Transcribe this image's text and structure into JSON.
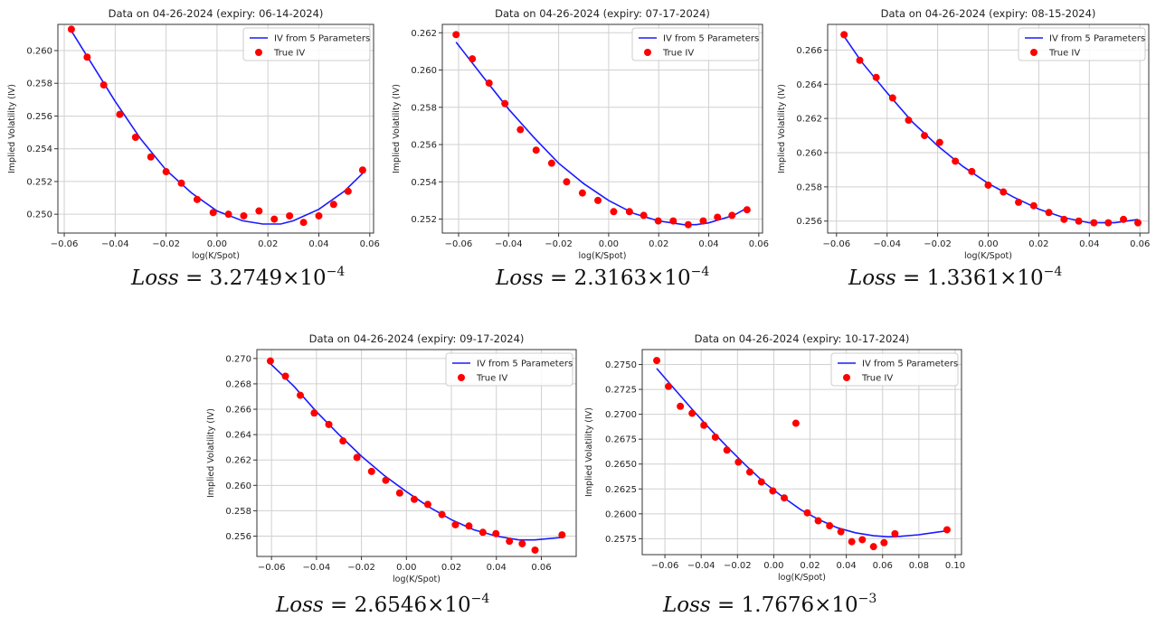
{
  "chart_data": [
    {
      "type": "scatter",
      "title": "Data on 04-26-2024 (expiry: 06-14-2024)",
      "xlabel": "log(K/Spot)",
      "ylabel": "Implied Volatility (IV)",
      "xlim": [
        -0.0625,
        0.0615
      ],
      "ylim": [
        0.24885,
        0.2616
      ],
      "xticks": [
        -0.06,
        -0.04,
        -0.02,
        0.0,
        0.02,
        0.04,
        0.06
      ],
      "xtick_labels": [
        "−0.06",
        "−0.04",
        "−0.02",
        "0.00",
        "0.02",
        "0.04",
        "0.06"
      ],
      "yticks": [
        0.25,
        0.252,
        0.254,
        0.256,
        0.258,
        0.26
      ],
      "ytick_labels": [
        "0.250",
        "0.252",
        "0.254",
        "0.256",
        "0.258",
        "0.260"
      ],
      "grid": true,
      "legend": {
        "position": "top-right",
        "entries": [
          "IV from 5 Parameters",
          "True IV"
        ]
      },
      "series": [
        {
          "name": "True IV",
          "kind": "scatter",
          "color": "#ff0000",
          "x": [
            -0.0572,
            -0.051,
            -0.0445,
            -0.0382,
            -0.032,
            -0.026,
            -0.02,
            -0.014,
            -0.0078,
            -0.0015,
            0.0045,
            0.0105,
            0.0165,
            0.0225,
            0.0285,
            0.034,
            0.04,
            0.0458,
            0.0515,
            0.0572
          ],
          "y": [
            0.2613,
            0.2596,
            0.2579,
            0.2561,
            0.2547,
            0.2535,
            0.2526,
            0.2519,
            0.2509,
            0.2501,
            0.25,
            0.2499,
            0.2502,
            0.2497,
            0.2499,
            0.2495,
            0.2499,
            0.2506,
            0.2514,
            0.2527
          ]
        },
        {
          "name": "IV from 5 Parameters",
          "kind": "line",
          "color": "#1a1aff",
          "x": [
            -0.0572,
            -0.05,
            -0.04,
            -0.03,
            -0.02,
            -0.01,
            0.0,
            0.01,
            0.018,
            0.025,
            0.03,
            0.04,
            0.05,
            0.0572
          ],
          "y": [
            0.2612,
            0.2594,
            0.2569,
            0.2546,
            0.2527,
            0.2513,
            0.2502,
            0.2496,
            0.2494,
            0.2494,
            0.2496,
            0.2503,
            0.2514,
            0.2525
          ]
        }
      ],
      "annotation": {
        "lhs": "Loss",
        "eq": " = ",
        "mantissa": "3.2749×10",
        "exponent": "−4"
      }
    },
    {
      "type": "scatter",
      "title": "Data on 04-26-2024 (expiry: 07-17-2024)",
      "xlabel": "log(K/Spot)",
      "ylabel": "Implied Volatility (IV)",
      "xlim": [
        -0.0665,
        0.0615
      ],
      "ylim": [
        0.25125,
        0.26245
      ],
      "xticks": [
        -0.06,
        -0.04,
        -0.02,
        0.0,
        0.02,
        0.04,
        0.06
      ],
      "xtick_labels": [
        "−0.06",
        "−0.04",
        "−0.02",
        "0.00",
        "0.02",
        "0.04",
        "0.06"
      ],
      "yticks": [
        0.252,
        0.254,
        0.256,
        0.258,
        0.26,
        0.262
      ],
      "ytick_labels": [
        "0.252",
        "0.254",
        "0.256",
        "0.258",
        "0.260",
        "0.262"
      ],
      "grid": true,
      "legend": {
        "position": "top-right",
        "entries": [
          "IV from 5 Parameters",
          "True IV"
        ]
      },
      "series": [
        {
          "name": "True IV",
          "kind": "scatter",
          "color": "#ff0000",
          "x": [
            -0.061,
            -0.0545,
            -0.0478,
            -0.0415,
            -0.0353,
            -0.029,
            -0.0228,
            -0.0168,
            -0.0105,
            -0.0043,
            0.002,
            0.0083,
            0.014,
            0.0198,
            0.0258,
            0.0318,
            0.0378,
            0.0435,
            0.0493,
            0.0553
          ],
          "y": [
            0.2619,
            0.2606,
            0.2593,
            0.2582,
            0.2568,
            0.2557,
            0.255,
            0.254,
            0.2534,
            0.253,
            0.2524,
            0.2524,
            0.2522,
            0.2519,
            0.2519,
            0.2517,
            0.2519,
            0.2521,
            0.2522,
            0.2525
          ]
        },
        {
          "name": "IV from 5 Parameters",
          "kind": "line",
          "color": "#1a1aff",
          "x": [
            -0.061,
            -0.05,
            -0.04,
            -0.03,
            -0.02,
            -0.01,
            0.0,
            0.01,
            0.02,
            0.03,
            0.035,
            0.04,
            0.05,
            0.0553
          ],
          "y": [
            0.2615,
            0.2596,
            0.2579,
            0.2564,
            0.255,
            0.2539,
            0.253,
            0.2523,
            0.2519,
            0.2517,
            0.2517,
            0.2518,
            0.2522,
            0.2526
          ]
        }
      ],
      "annotation": {
        "lhs": "Loss",
        "eq": " = ",
        "mantissa": "2.3163×10",
        "exponent": "−4"
      }
    },
    {
      "type": "scatter",
      "title": "Data on 04-26-2024 (expiry: 08-15-2024)",
      "xlabel": "log(K/Spot)",
      "ylabel": "Implied Volatility (IV)",
      "xlim": [
        -0.0635,
        0.0635
      ],
      "ylim": [
        0.2553,
        0.2675
      ],
      "xticks": [
        -0.06,
        -0.04,
        -0.02,
        0.0,
        0.02,
        0.04,
        0.06
      ],
      "xtick_labels": [
        "−0.06",
        "−0.04",
        "−0.02",
        "0.00",
        "0.02",
        "0.04",
        "0.06"
      ],
      "yticks": [
        0.256,
        0.258,
        0.26,
        0.262,
        0.264,
        0.266
      ],
      "ytick_labels": [
        "0.256",
        "0.258",
        "0.260",
        "0.262",
        "0.264",
        "0.266"
      ],
      "grid": true,
      "legend": {
        "position": "top-right",
        "entries": [
          "IV from 5 Parameters",
          "True IV"
        ]
      },
      "series": [
        {
          "name": "True IV",
          "kind": "scatter",
          "color": "#ff0000",
          "x": [
            -0.057,
            -0.0508,
            -0.0443,
            -0.0378,
            -0.0315,
            -0.0252,
            -0.0192,
            -0.013,
            -0.0065,
            0.0,
            0.006,
            0.012,
            0.018,
            0.024,
            0.03,
            0.0358,
            0.0418,
            0.0475,
            0.0535,
            0.0592
          ],
          "y": [
            0.2669,
            0.2654,
            0.2644,
            0.2632,
            0.2619,
            0.261,
            0.2606,
            0.2595,
            0.2589,
            0.2581,
            0.2577,
            0.2571,
            0.2569,
            0.2565,
            0.2561,
            0.256,
            0.2559,
            0.2559,
            0.2561,
            0.2559
          ]
        },
        {
          "name": "IV from 5 Parameters",
          "kind": "line",
          "color": "#1a1aff",
          "x": [
            -0.057,
            -0.05,
            -0.04,
            -0.03,
            -0.02,
            -0.01,
            0.0,
            0.01,
            0.02,
            0.03,
            0.04,
            0.045,
            0.05,
            0.0592
          ],
          "y": [
            0.2668,
            0.2653,
            0.2635,
            0.2618,
            0.2604,
            0.2592,
            0.2582,
            0.2574,
            0.2567,
            0.2562,
            0.2559,
            0.2559,
            0.2559,
            0.2561
          ]
        }
      ],
      "annotation": {
        "lhs": "Loss",
        "eq": " = ",
        "mantissa": "1.3361×10",
        "exponent": "−4"
      }
    },
    {
      "type": "scatter",
      "title": "Data on 04-26-2024 (expiry: 09-17-2024)",
      "xlabel": "log(K/Spot)",
      "ylabel": "Implied Volatility (IV)",
      "xlim": [
        -0.0665,
        0.0755
      ],
      "ylim": [
        0.2544,
        0.2707
      ],
      "xticks": [
        -0.06,
        -0.04,
        -0.02,
        0.0,
        0.02,
        0.04,
        0.06
      ],
      "xtick_labels": [
        "−0.06",
        "−0.04",
        "−0.02",
        "0.00",
        "0.02",
        "0.04",
        "0.06"
      ],
      "yticks": [
        0.256,
        0.258,
        0.26,
        0.262,
        0.264,
        0.266,
        0.268,
        0.27
      ],
      "ytick_labels": [
        "0.256",
        "0.258",
        "0.260",
        "0.262",
        "0.264",
        "0.266",
        "0.268",
        "0.270"
      ],
      "grid": true,
      "legend": {
        "position": "top-right",
        "entries": [
          "IV from 5 Parameters",
          "True IV"
        ]
      },
      "series": [
        {
          "name": "True IV",
          "kind": "scatter",
          "color": "#ff0000",
          "x": [
            -0.0605,
            -0.0538,
            -0.0472,
            -0.041,
            -0.0345,
            -0.0282,
            -0.022,
            -0.0155,
            -0.0092,
            -0.003,
            0.0035,
            0.0095,
            0.0158,
            0.0218,
            0.0278,
            0.034,
            0.0398,
            0.0458,
            0.0515,
            0.0572,
            0.0692
          ],
          "y": [
            0.2698,
            0.2686,
            0.2671,
            0.2657,
            0.2648,
            0.2635,
            0.2622,
            0.2611,
            0.2604,
            0.2594,
            0.2589,
            0.2585,
            0.2577,
            0.2569,
            0.2568,
            0.2563,
            0.2562,
            0.2556,
            0.2554,
            0.2549,
            0.2561
          ]
        },
        {
          "name": "IV from 5 Parameters",
          "kind": "line",
          "color": "#1a1aff",
          "x": [
            -0.0605,
            -0.05,
            -0.04,
            -0.03,
            -0.02,
            -0.01,
            0.0,
            0.01,
            0.02,
            0.03,
            0.04,
            0.05,
            0.057,
            0.0692
          ],
          "y": [
            0.2696,
            0.2678,
            0.2658,
            0.264,
            0.2623,
            0.2608,
            0.2595,
            0.2583,
            0.2573,
            0.2565,
            0.256,
            0.2557,
            0.2557,
            0.2559
          ]
        }
      ],
      "annotation": {
        "lhs": "Loss",
        "eq": " = ",
        "mantissa": "2.6546×10",
        "exponent": "−4"
      }
    },
    {
      "type": "scatter",
      "title": "Data on 04-26-2024 (expiry: 10-17-2024)",
      "xlabel": "log(K/Spot)",
      "ylabel": "Implied Volatility (IV)",
      "xlim": [
        -0.0725,
        0.1035
      ],
      "ylim": [
        0.2559,
        0.2765
      ],
      "xticks": [
        -0.06,
        -0.04,
        -0.02,
        0.0,
        0.02,
        0.04,
        0.06,
        0.08,
        0.1
      ],
      "xtick_labels": [
        "−0.06",
        "−0.04",
        "−0.02",
        "0.00",
        "0.02",
        "0.04",
        "0.06",
        "0.08",
        "0.10"
      ],
      "yticks": [
        0.2575,
        0.26,
        0.2625,
        0.265,
        0.2675,
        0.27,
        0.2725,
        0.275
      ],
      "ytick_labels": [
        "0.2575",
        "0.2600",
        "0.2625",
        "0.2650",
        "0.2675",
        "0.2700",
        "0.2725",
        "0.2750"
      ],
      "grid": true,
      "legend": {
        "position": "top-right",
        "entries": [
          "IV from 5 Parameters",
          "True IV"
        ]
      },
      "series": [
        {
          "name": "True IV",
          "kind": "scatter",
          "color": "#ff0000",
          "x": [
            -0.0645,
            -0.058,
            -0.0515,
            -0.045,
            -0.0385,
            -0.0322,
            -0.0258,
            -0.0195,
            -0.0132,
            -0.0068,
            -0.0005,
            0.0058,
            0.0122,
            0.0185,
            0.0245,
            0.0308,
            0.037,
            0.043,
            0.0488,
            0.055,
            0.0608,
            0.0668,
            0.0955
          ],
          "y": [
            0.2754,
            0.2728,
            0.2708,
            0.2701,
            0.2689,
            0.2677,
            0.2664,
            0.2652,
            0.2642,
            0.2632,
            0.2623,
            0.2616,
            0.2691,
            0.2601,
            0.2593,
            0.2588,
            0.2582,
            0.2572,
            0.2574,
            0.2567,
            0.2571,
            0.258,
            0.2584
          ]
        },
        {
          "name": "IV from 5 Parameters",
          "kind": "line",
          "color": "#1a1aff",
          "x": [
            -0.0645,
            -0.055,
            -0.045,
            -0.035,
            -0.025,
            -0.015,
            -0.005,
            0.005,
            0.015,
            0.025,
            0.035,
            0.045,
            0.055,
            0.063,
            0.067,
            0.08,
            0.0955
          ],
          "y": [
            0.2746,
            0.2726,
            0.2705,
            0.2685,
            0.2666,
            0.2648,
            0.2631,
            0.2617,
            0.2604,
            0.2594,
            0.2586,
            0.2581,
            0.2578,
            0.2577,
            0.2577,
            0.2579,
            0.2583
          ]
        }
      ],
      "annotation": {
        "lhs": "Loss",
        "eq": " = ",
        "mantissa": "1.7676×10",
        "exponent": "−3"
      }
    }
  ]
}
